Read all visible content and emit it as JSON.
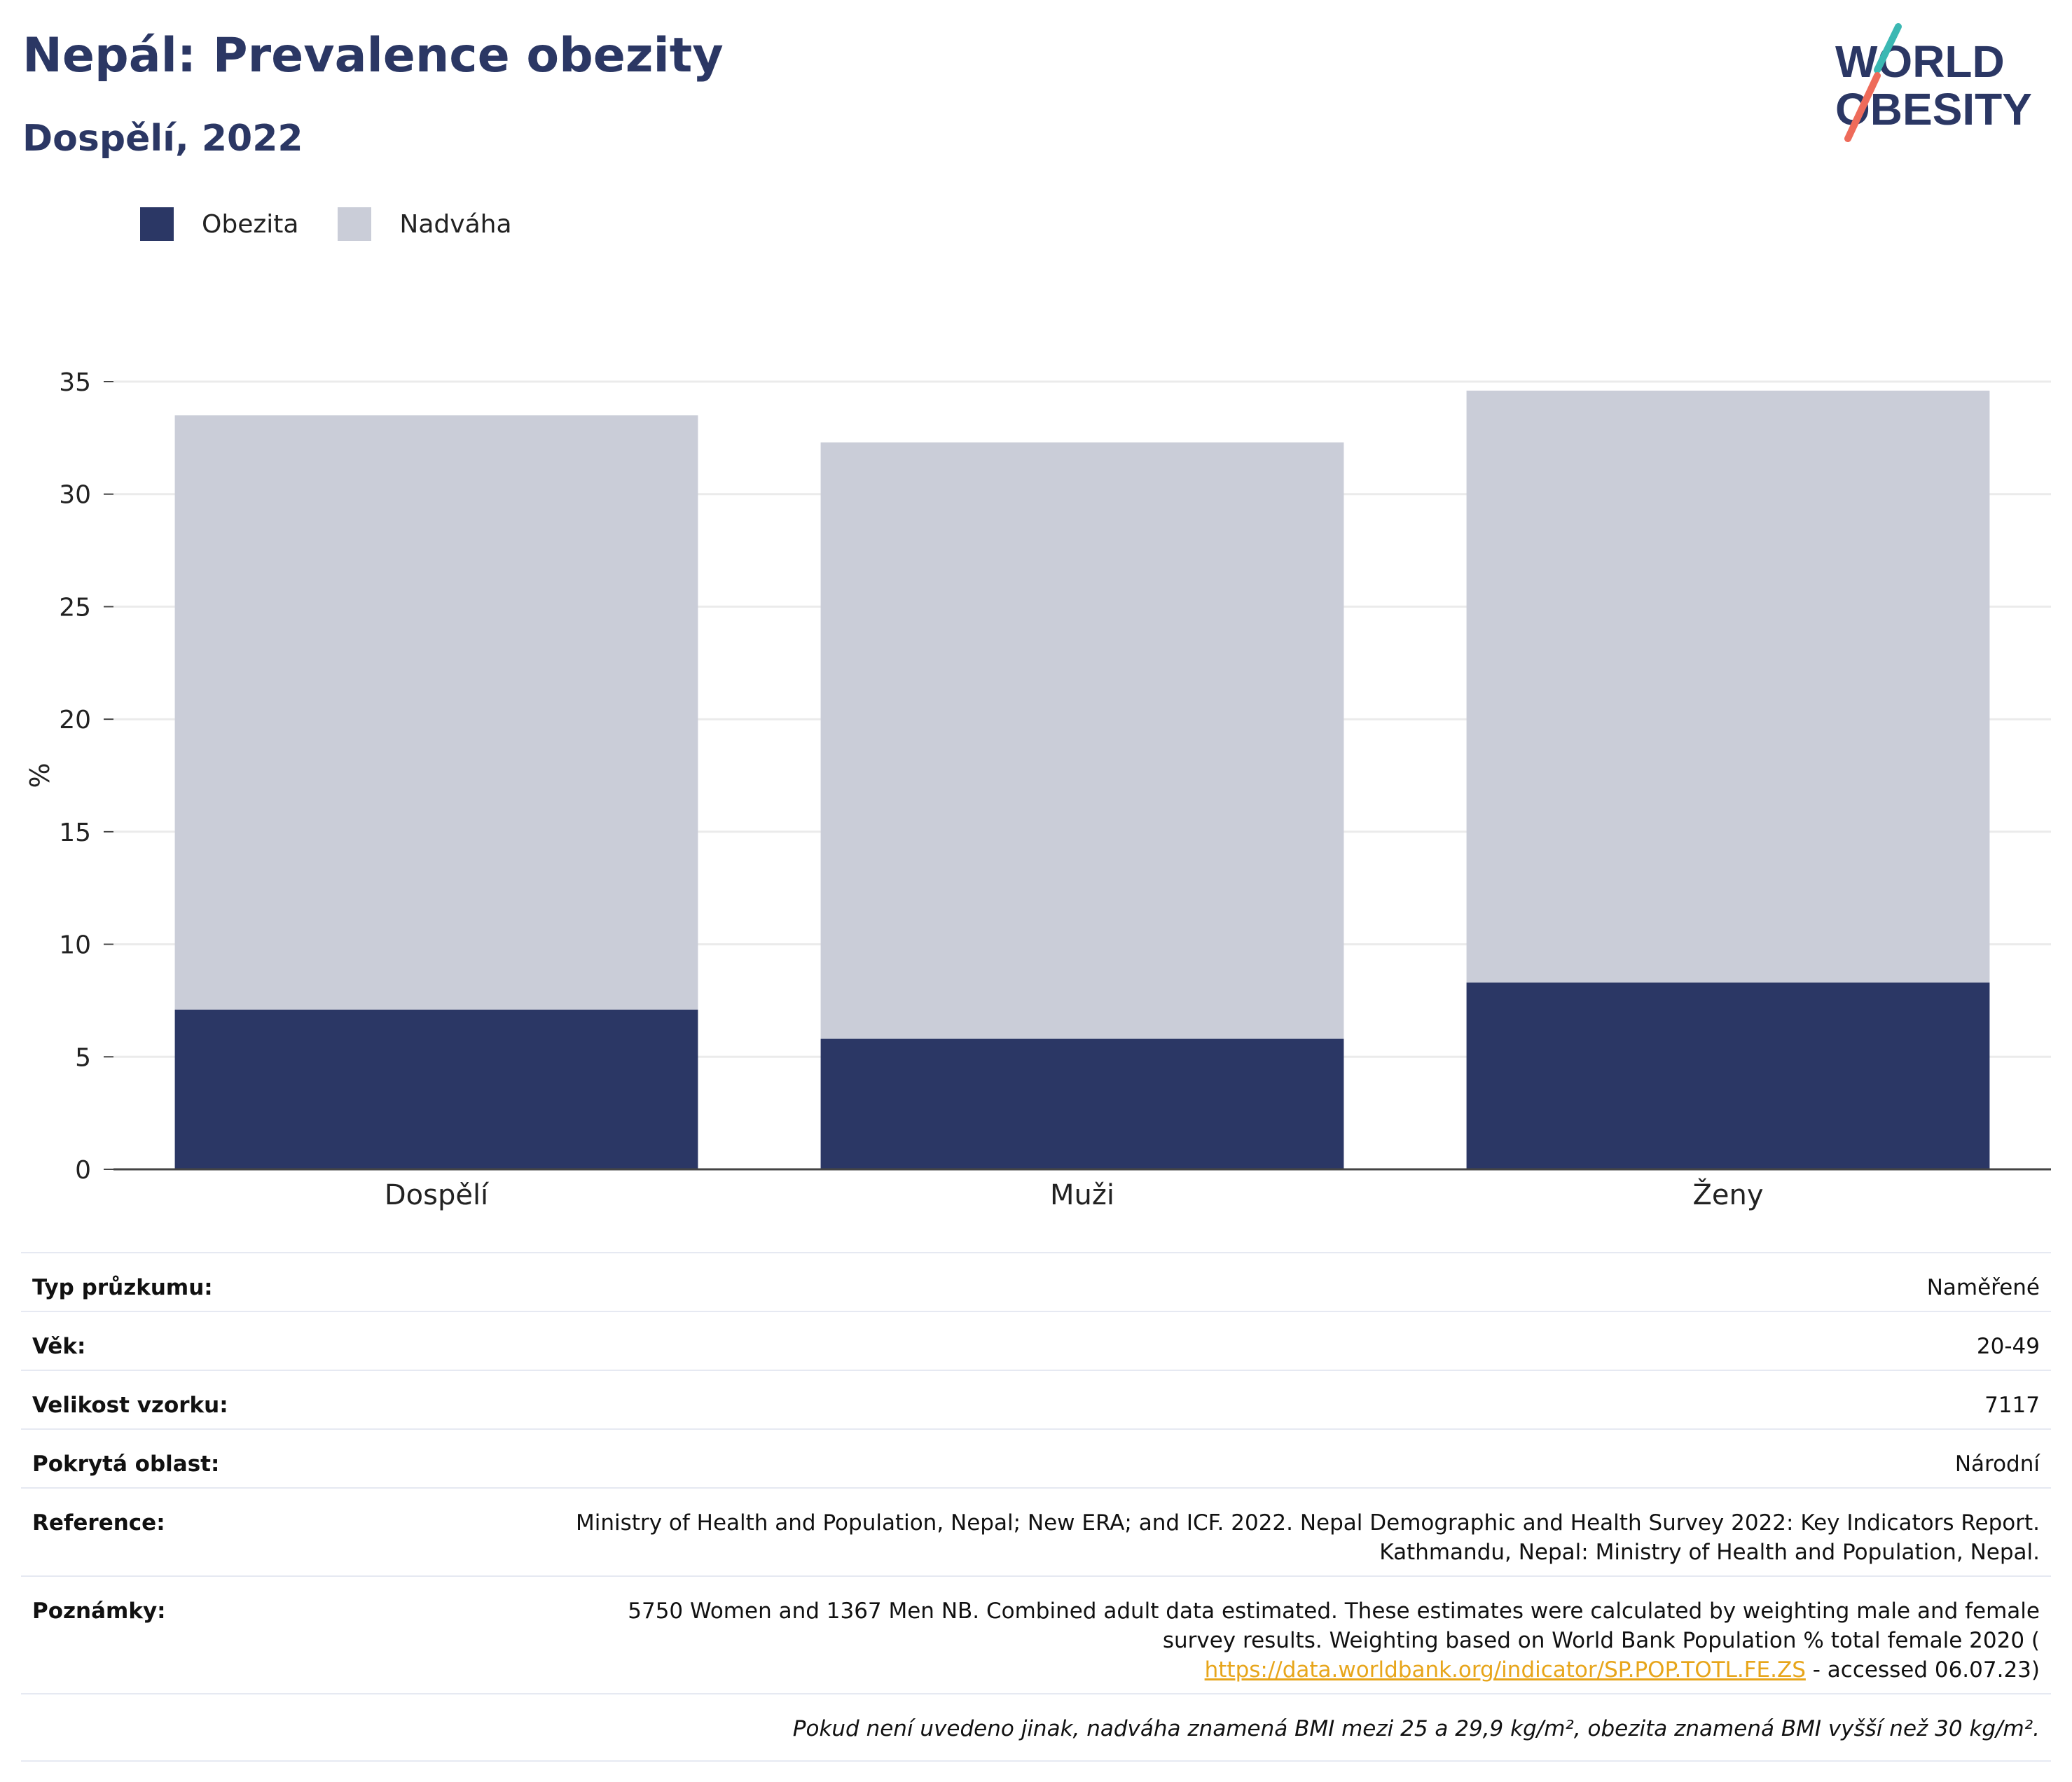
{
  "header": {
    "title": "Nepál: Prevalence obezity",
    "subtitle": "Dospělí, 2022"
  },
  "logo": {
    "line1": "WORLD",
    "line2": "OBESITY"
  },
  "colors": {
    "obesity": "#2b3765",
    "overweight": "#cacdd8",
    "title": "#2b3764",
    "link": "#e7a51a"
  },
  "chart_data": {
    "type": "bar",
    "stacked": true,
    "categories": [
      "Dospělí",
      "Muži",
      "Ženy"
    ],
    "series": [
      {
        "name": "Obezita",
        "values": [
          7.1,
          5.8,
          8.3
        ],
        "color": "#2b3765"
      },
      {
        "name": "Nadváha",
        "values": [
          26.4,
          26.5,
          26.3
        ],
        "color": "#cacdd8"
      }
    ],
    "ylabel": "%",
    "ylim": [
      0,
      35
    ],
    "yticks": [
      0,
      5,
      10,
      15,
      20,
      25,
      30,
      35
    ],
    "grid": true,
    "legend": "top-left"
  },
  "info": {
    "survey_type": {
      "label": "Typ průzkumu:",
      "value": "Naměřené"
    },
    "age": {
      "label": "Věk:",
      "value": "20-49"
    },
    "sample_size": {
      "label": "Velikost vzorku:",
      "value": "7117"
    },
    "coverage": {
      "label": "Pokrytá oblast:",
      "value": "Národní"
    },
    "reference": {
      "label": "Reference:",
      "line1": "Ministry of Health and Population, Nepal; New ERA; and ICF. 2022. Nepal Demographic and Health Survey 2022: Key Indicators Report.",
      "line2": "Kathmandu, Nepal: Ministry of Health and Population, Nepal."
    },
    "notes": {
      "label": "Poznámky:",
      "line1": "5750 Women and 1367 Men NB. Combined adult data estimated. These estimates were calculated by weighting male and female",
      "line2": "survey results. Weighting based on World Bank Population % total female 2020 (",
      "link": "https://data.worldbank.org/indicator/SP.POP.TOTL.FE.ZS",
      "line3_suffix": " - accessed 06.07.23)"
    },
    "footnote": "Pokud není uvedeno jinak, nadváha znamená BMI mezi 25 a 29,9 kg/m², obezita znamená BMI vyšší než 30 kg/m²."
  }
}
